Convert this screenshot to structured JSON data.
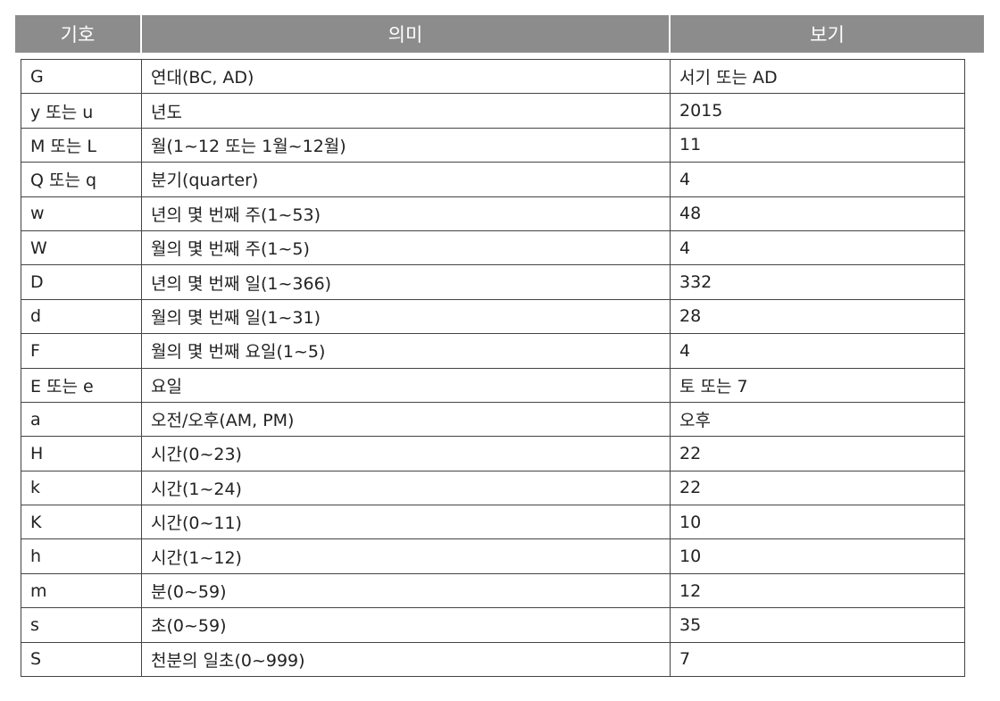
{
  "header": {
    "symbol": "기호",
    "meaning": "의미",
    "example": "보기"
  },
  "rows": [
    {
      "symbol": "G",
      "meaning": "연대(BC, AD)",
      "example": "서기 또는 AD"
    },
    {
      "symbol": "y 또는 u",
      "meaning": "년도",
      "example": "2015"
    },
    {
      "symbol": "M 또는 L",
      "meaning": "월(1~12 또는 1월~12월)",
      "example": "11"
    },
    {
      "symbol": "Q 또는 q",
      "meaning": "분기(quarter)",
      "example": "4"
    },
    {
      "symbol": "w",
      "meaning": "년의 몇 번째 주(1~53)",
      "example": "48"
    },
    {
      "symbol": "W",
      "meaning": "월의 몇 번째 주(1~5)",
      "example": "4"
    },
    {
      "symbol": "D",
      "meaning": "년의 몇 번째 일(1~366)",
      "example": "332"
    },
    {
      "symbol": "d",
      "meaning": "월의 몇 번째 일(1~31)",
      "example": "28"
    },
    {
      "symbol": "F",
      "meaning": "월의 몇 번째 요일(1~5)",
      "example": "4"
    },
    {
      "symbol": "E 또는 e",
      "meaning": "요일",
      "example": "토 또는 7"
    },
    {
      "symbol": "a",
      "meaning": "오전/오후(AM, PM)",
      "example": "오후"
    },
    {
      "symbol": "H",
      "meaning": "시간(0~23)",
      "example": "22"
    },
    {
      "symbol": "k",
      "meaning": "시간(1~24)",
      "example": "22"
    },
    {
      "symbol": "K",
      "meaning": "시간(0~11)",
      "example": "10"
    },
    {
      "symbol": "h",
      "meaning": "시간(1~12)",
      "example": "10"
    },
    {
      "symbol": "m",
      "meaning": "분(0~59)",
      "example": "12"
    },
    {
      "symbol": "s",
      "meaning": "초(0~59)",
      "example": "35"
    },
    {
      "symbol": "S",
      "meaning": "천분의 일초(0~999)",
      "example": "7"
    }
  ],
  "colors": {
    "header_bg": "#8c8c8c",
    "header_text": "#ffffff",
    "border": "#444444"
  }
}
